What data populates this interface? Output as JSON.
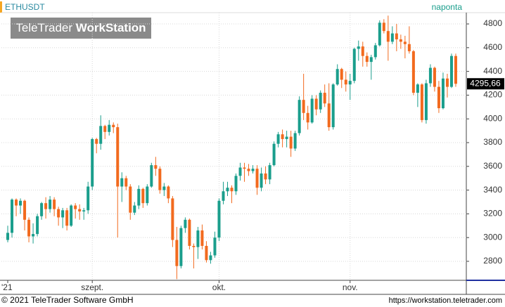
{
  "chart_data": {
    "type": "candlestick",
    "symbol": "ETHUSDT",
    "interval": "naponta",
    "watermark": [
      "TeleTrader ",
      "WorkStation"
    ],
    "copyright": "© 2021 TeleTrader Software GmbH",
    "url": "https://workstation.teletrader.com",
    "last_close_label": "4295,66",
    "up_color": "#1a9e8c",
    "down_color": "#f26a1e",
    "grid": true,
    "ylim": [
      2640,
      4895
    ],
    "yticks": [
      2800,
      3000,
      3200,
      3400,
      3600,
      3800,
      4000,
      4200,
      4400,
      4600,
      4800
    ],
    "xlim": [
      -1.5,
      108.5
    ],
    "xticks": [
      {
        "value": 0,
        "label": "'21"
      },
      {
        "value": 20,
        "label": "szept."
      },
      {
        "value": 50,
        "label": "okt."
      },
      {
        "value": 81,
        "label": "nov."
      }
    ],
    "open": [
      2980,
      3040,
      3320,
      3270,
      3310,
      3150,
      3010,
      3030,
      3180,
      3290,
      3240,
      3320,
      3240,
      3170,
      3230,
      3100,
      3270,
      3240,
      3220,
      3230,
      3430,
      3830,
      3790,
      3940,
      3890,
      3950,
      3930,
      3430,
      3500,
      3430,
      3210,
      3270,
      3410,
      3290,
      3430,
      3610,
      3580,
      3400,
      3430,
      3330,
      2980,
      2760,
      3080,
      3150,
      2930,
      2920,
      3060,
      2930,
      2810,
      2850,
      3000,
      3310,
      3390,
      3420,
      3390,
      3520,
      3590,
      3580,
      3560,
      3580,
      3420,
      3540,
      3490,
      3610,
      3790,
      3870,
      3830,
      3850,
      3750,
      3880,
      4160,
      4050,
      3970,
      4170,
      4080,
      4220,
      4130,
      3930,
      4290,
      4420,
      4330,
      4290,
      4320,
      4590,
      4610,
      4530,
      4480,
      4520,
      4620,
      4810,
      4740,
      4650,
      4720,
      4670,
      4650,
      4630,
      4570,
      4220,
      4290,
      3990,
      4300,
      4430,
      4270,
      4090,
      4340,
      4270,
      4530
    ],
    "high": [
      3100,
      3330,
      3330,
      3330,
      3320,
      3170,
      3120,
      3200,
      3300,
      3340,
      3350,
      3340,
      3260,
      3250,
      3250,
      3280,
      3290,
      3280,
      3250,
      3470,
      3840,
      3840,
      4030,
      3950,
      3990,
      3970,
      3960,
      3550,
      3520,
      3450,
      3300,
      3440,
      3420,
      3450,
      3630,
      3680,
      3600,
      3460,
      3440,
      3350,
      3090,
      3100,
      3170,
      3160,
      2950,
      3090,
      3110,
      2970,
      2880,
      3050,
      3330,
      3470,
      3470,
      3440,
      3540,
      3630,
      3630,
      3620,
      3610,
      3610,
      3590,
      3600,
      3630,
      3810,
      3890,
      3910,
      3900,
      3900,
      3900,
      4190,
      4380,
      4110,
      4200,
      4200,
      4240,
      4290,
      4300,
      4300,
      4460,
      4430,
      4400,
      4380,
      4600,
      4660,
      4650,
      4560,
      4540,
      4640,
      4830,
      4840,
      4870,
      4780,
      4800,
      4710,
      4700,
      4780,
      4580,
      4300,
      4300,
      4330,
      4460,
      4440,
      4320,
      4390,
      4380,
      4550,
      4550
    ],
    "low": [
      2960,
      3000,
      3180,
      3200,
      3060,
      2960,
      2950,
      3010,
      3150,
      3160,
      3210,
      3180,
      3100,
      3080,
      3060,
      3090,
      3160,
      3150,
      3150,
      3200,
      3400,
      3710,
      3740,
      3830,
      3860,
      3880,
      3000,
      3300,
      3400,
      3150,
      3190,
      3240,
      3250,
      3270,
      3420,
      3520,
      3370,
      3350,
      3290,
      2920,
      2650,
      2740,
      3040,
      2900,
      2740,
      2820,
      2900,
      2790,
      2780,
      2830,
      2970,
      3280,
      3350,
      3290,
      3360,
      3480,
      3470,
      3520,
      3540,
      3360,
      3390,
      3450,
      3450,
      3600,
      3760,
      3760,
      3760,
      3680,
      3730,
      3860,
      3990,
      3910,
      3960,
      4030,
      4050,
      4100,
      3900,
      3910,
      4280,
      4260,
      4230,
      4160,
      4300,
      4490,
      4440,
      4440,
      4330,
      4500,
      4610,
      4720,
      4490,
      4630,
      4570,
      4590,
      4510,
      4550,
      4200,
      4100,
      3970,
      3960,
      4270,
      4230,
      4050,
      4080,
      4180,
      4260,
      4270
    ],
    "close": [
      3040,
      3320,
      3270,
      3310,
      3150,
      3010,
      3030,
      3180,
      3290,
      3240,
      3320,
      3240,
      3170,
      3230,
      3100,
      3270,
      3240,
      3220,
      3230,
      3430,
      3830,
      3790,
      3940,
      3890,
      3950,
      3930,
      3430,
      3500,
      3430,
      3210,
      3270,
      3410,
      3290,
      3430,
      3610,
      3580,
      3400,
      3430,
      3330,
      2980,
      2760,
      3080,
      3150,
      2930,
      2920,
      3060,
      2930,
      2810,
      2850,
      3000,
      3310,
      3390,
      3420,
      3390,
      3520,
      3590,
      3580,
      3560,
      3580,
      3420,
      3540,
      3490,
      3610,
      3790,
      3870,
      3830,
      3850,
      3750,
      3880,
      4160,
      4050,
      3970,
      4170,
      4080,
      4220,
      4130,
      3930,
      4290,
      4420,
      4330,
      4290,
      4320,
      4590,
      4610,
      4530,
      4480,
      4520,
      4620,
      4810,
      4740,
      4650,
      4720,
      4670,
      4650,
      4630,
      4570,
      4220,
      4290,
      3990,
      4300,
      4430,
      4270,
      4090,
      4340,
      4270,
      4530,
      4295.66
    ]
  }
}
